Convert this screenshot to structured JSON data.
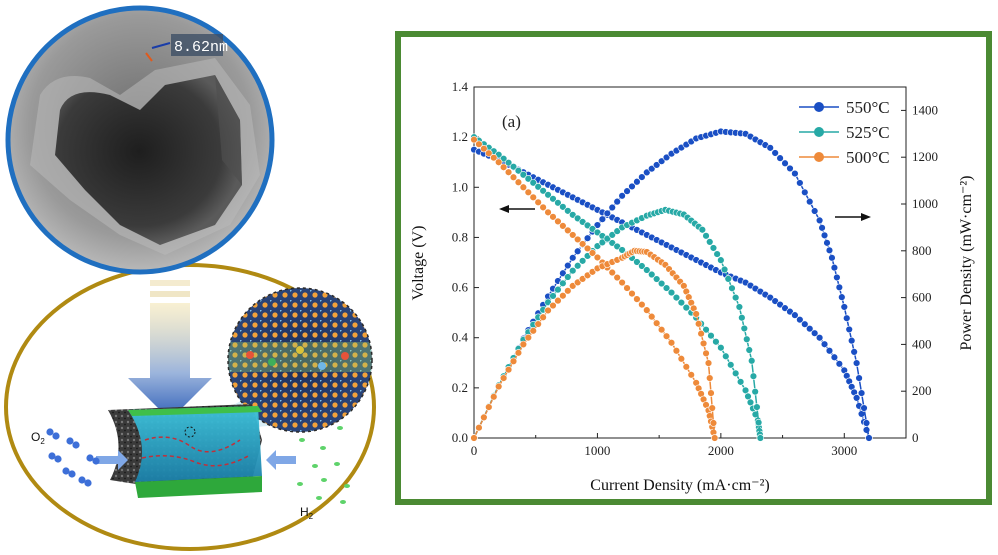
{
  "image": {
    "scale_label": "8.62nm",
    "gas_o2": "O",
    "gas_o2_sub": "2",
    "gas_h2": "H",
    "gas_h2_sub": "2"
  },
  "colors": {
    "frame": "#4b8a33",
    "circle_top": "#1f6fc0",
    "ellipse_bottom": "#b08a12",
    "s550": "#1a4fc4",
    "s525": "#27a9a6",
    "s500": "#ee8a3a"
  },
  "chart_data": {
    "type": "line",
    "panel_label": "(a)",
    "xlabel": "Current Density (mA·cm⁻²)",
    "ylabel_left": "Voltage (V)",
    "ylabel_right": "Power Density (mW·cm⁻²)",
    "xlim": [
      0,
      3500
    ],
    "ylim_left": [
      0,
      1.4
    ],
    "ylim_right": [
      0,
      1500
    ],
    "x_ticks": [
      0,
      1000,
      2000,
      3000
    ],
    "y_left_ticks": [
      0.0,
      0.2,
      0.4,
      0.6,
      0.8,
      1.0,
      1.2,
      1.4
    ],
    "y_left_tick_labels": [
      "0.0",
      "0.2",
      "0.4",
      "0.6",
      "0.8",
      "1.0",
      "1.2",
      "1.4"
    ],
    "y_right_ticks": [
      0,
      200,
      400,
      600,
      800,
      1000,
      1200,
      1400
    ],
    "legend_position": "top-right",
    "series": [
      {
        "name": "550°C",
        "color_key": "s550",
        "voltage": {
          "x": [
            0,
            200,
            400,
            600,
            800,
            1000,
            1200,
            1400,
            1600,
            1800,
            2000,
            2200,
            2400,
            2600,
            2800,
            3000,
            3100,
            3200
          ],
          "y": [
            1.15,
            1.11,
            1.06,
            1.01,
            0.96,
            0.91,
            0.86,
            0.81,
            0.76,
            0.71,
            0.66,
            0.62,
            0.56,
            0.49,
            0.4,
            0.27,
            0.16,
            0.0
          ]
        },
        "power": {
          "x": [
            0,
            200,
            400,
            600,
            800,
            1000,
            1200,
            1400,
            1600,
            1800,
            2000,
            2200,
            2400,
            2600,
            2800,
            2900,
            3000,
            3100,
            3200
          ],
          "y": [
            0,
            220,
            425,
            605,
            770,
            910,
            1035,
            1135,
            1215,
            1280,
            1310,
            1300,
            1240,
            1130,
            930,
            770,
            560,
            320,
            0
          ]
        }
      },
      {
        "name": "525°C",
        "color_key": "s525",
        "voltage": {
          "x": [
            0,
            200,
            400,
            600,
            800,
            1000,
            1200,
            1400,
            1600,
            1800,
            2000,
            2200,
            2300,
            2320
          ],
          "y": [
            1.2,
            1.13,
            1.05,
            0.97,
            0.89,
            0.82,
            0.75,
            0.67,
            0.58,
            0.48,
            0.36,
            0.19,
            0.07,
            0.0
          ]
        },
        "power": {
          "x": [
            0,
            200,
            400,
            600,
            800,
            1000,
            1200,
            1400,
            1550,
            1700,
            1850,
            2000,
            2150,
            2250,
            2320
          ],
          "y": [
            0,
            225,
            420,
            580,
            715,
            820,
            900,
            950,
            975,
            955,
            890,
            760,
            560,
            330,
            0
          ]
        }
      },
      {
        "name": "500°C",
        "color_key": "s500",
        "voltage": {
          "x": [
            0,
            200,
            400,
            600,
            800,
            1000,
            1200,
            1400,
            1600,
            1800,
            1900,
            1950
          ],
          "y": [
            1.19,
            1.1,
            1.0,
            0.9,
            0.81,
            0.72,
            0.62,
            0.51,
            0.38,
            0.22,
            0.11,
            0.0
          ]
        },
        "power": {
          "x": [
            0,
            200,
            400,
            600,
            800,
            1000,
            1200,
            1300,
            1400,
            1550,
            1700,
            1800,
            1900,
            1950
          ],
          "y": [
            0,
            220,
            400,
            545,
            650,
            725,
            770,
            800,
            795,
            740,
            650,
            530,
            320,
            0
          ]
        }
      }
    ]
  }
}
